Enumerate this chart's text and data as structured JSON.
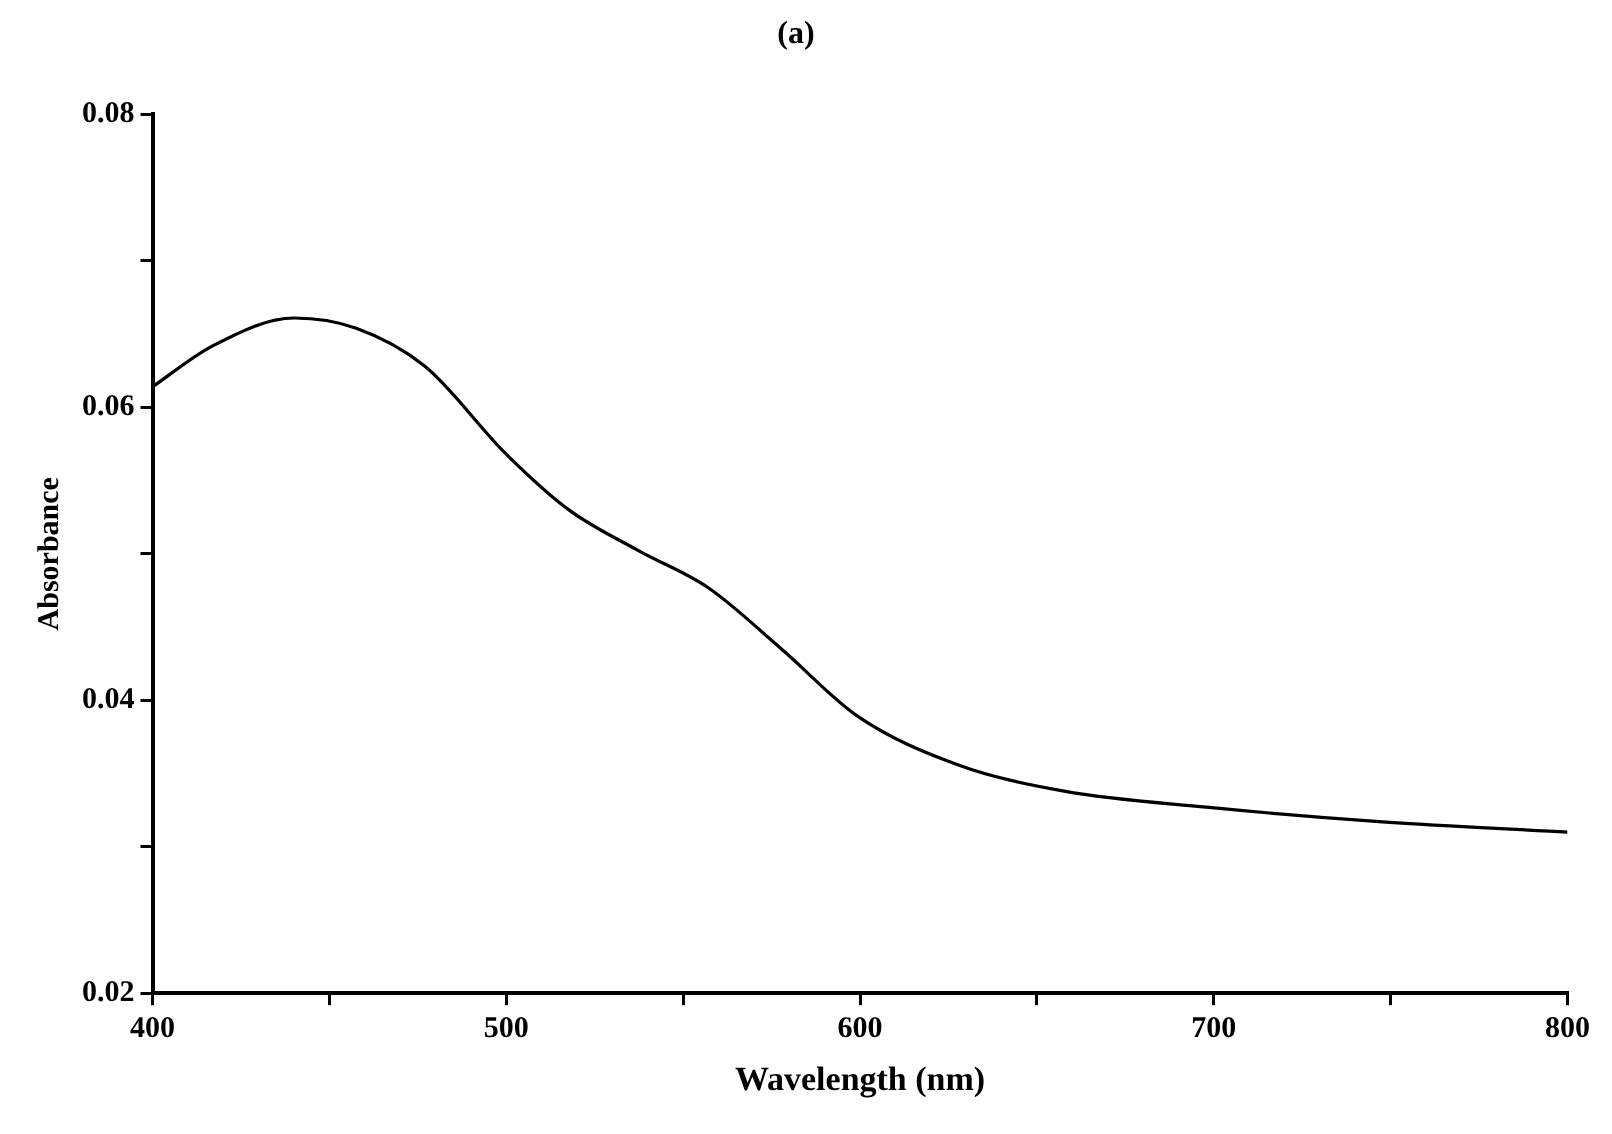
{
  "chart_data": {
    "type": "line",
    "title": "(a)",
    "xlabel": "Wavelength (nm)",
    "ylabel": "Absorbance",
    "x": [
      400,
      417,
      440,
      457.6,
      477,
      500,
      517.7,
      537.5,
      557,
      577.8,
      599.4,
      627.6,
      657.7,
      697.9,
      747.7,
      800
    ],
    "series": [
      {
        "color": "#000000",
        "values": [
          0.0614,
          0.0642,
          0.0661,
          0.0654,
          0.0628,
          0.0568,
          0.053,
          0.0502,
          0.0477,
          0.0435,
          0.0389,
          0.0356,
          0.0338,
          0.0327,
          0.0317,
          0.031
        ]
      }
    ],
    "xlim": [
      400,
      800
    ],
    "xticks": [
      400,
      {
        "value": 450,
        "label": null
      },
      500,
      {
        "value": 550,
        "label": null
      },
      600,
      {
        "value": 650,
        "label": null
      },
      700,
      {
        "value": 750,
        "label": null
      },
      800
    ],
    "ylim": [
      0.02,
      0.08
    ],
    "yticks": [
      0.02,
      {
        "value": 0.03,
        "label": null
      },
      0.04,
      {
        "value": 0.05,
        "label": null
      },
      0.06,
      {
        "value": 0.07,
        "label": null
      },
      0.08
    ],
    "grid": false,
    "legend": false,
    "marker": "none",
    "line_style": "solid"
  }
}
